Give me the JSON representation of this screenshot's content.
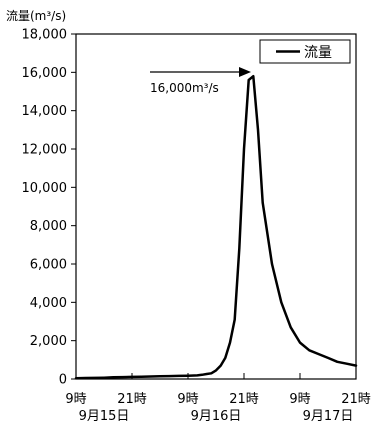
{
  "chart_data": {
    "type": "line",
    "y_unit_label": "流量(m³/s)",
    "ylim": [
      0,
      18000
    ],
    "yticks": [
      0,
      2000,
      4000,
      6000,
      8000,
      10000,
      12000,
      14000,
      16000,
      18000
    ],
    "ytick_labels": [
      "0",
      "2,000",
      "4,000",
      "6,000",
      "8,000",
      "10,000",
      "12,000",
      "14,000",
      "16,000",
      "18,000"
    ],
    "x_unit": "hours since 9時 9月15日",
    "xlim": [
      0,
      60
    ],
    "xticks": [
      {
        "x": 0,
        "hour": "9時",
        "date": "9月15日"
      },
      {
        "x": 12,
        "hour": "21時",
        "date": ""
      },
      {
        "x": 24,
        "hour": "9時",
        "date": "9月16日"
      },
      {
        "x": 36,
        "hour": "21時",
        "date": ""
      },
      {
        "x": 48,
        "hour": "9時",
        "date": "9月17日"
      },
      {
        "x": 60,
        "hour": "21時",
        "date": ""
      }
    ],
    "grid": false,
    "legend": {
      "position": "top-right",
      "entries": [
        "流量"
      ]
    },
    "series": [
      {
        "name": "流量",
        "color": "#000000",
        "x": [
          0,
          2,
          4,
          6,
          8,
          10,
          12,
          14,
          16,
          18,
          20,
          22,
          24,
          26,
          27,
          28,
          29,
          30,
          31,
          32,
          33,
          34,
          35,
          36,
          37,
          38,
          39,
          40,
          42,
          44,
          46,
          48,
          50,
          52,
          54,
          56,
          58,
          60
        ],
        "y": [
          40,
          50,
          60,
          70,
          90,
          100,
          110,
          120,
          130,
          140,
          150,
          160,
          170,
          190,
          220,
          260,
          300,
          450,
          700,
          1100,
          1900,
          3100,
          6800,
          12000,
          15600,
          15800,
          13000,
          9200,
          6000,
          4000,
          2700,
          1900,
          1500,
          1300,
          1100,
          900,
          800,
          700
        ]
      }
    ],
    "annotation": {
      "text": "16,000m³/s",
      "arrow": "right"
    }
  }
}
